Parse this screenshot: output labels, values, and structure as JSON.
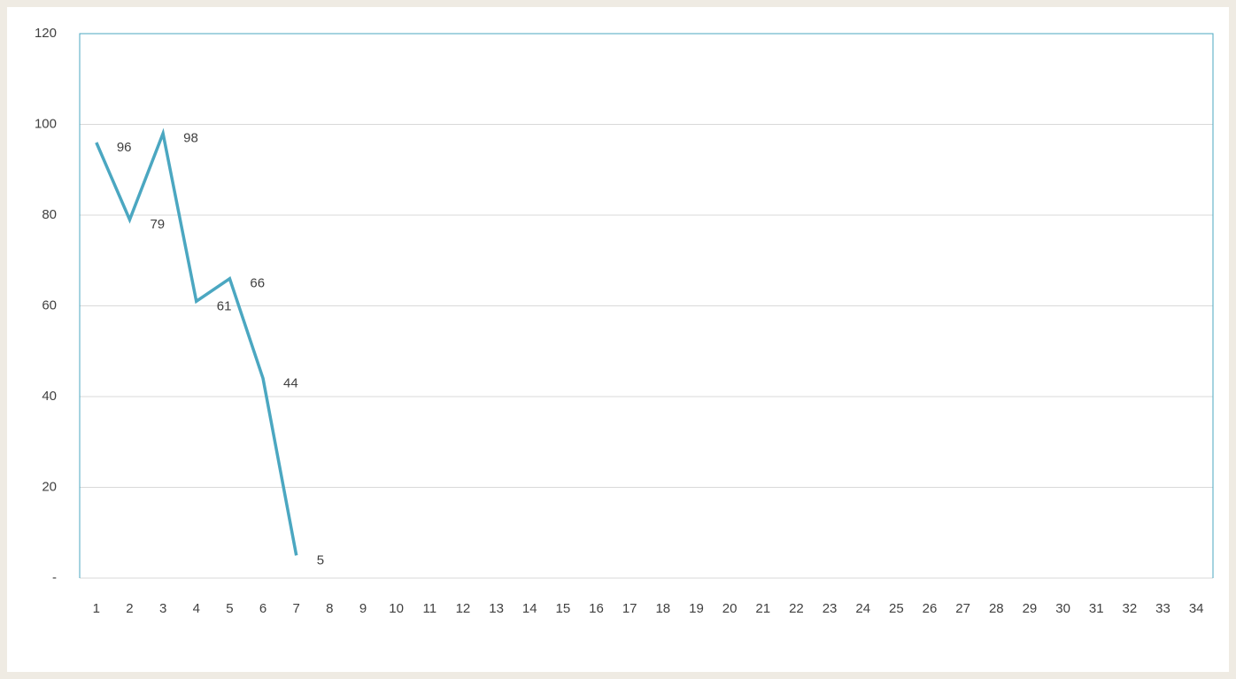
{
  "chart_data": {
    "type": "line",
    "categories": [
      "1",
      "2",
      "3",
      "4",
      "5",
      "6",
      "7",
      "8",
      "9",
      "10",
      "11",
      "12",
      "13",
      "14",
      "15",
      "16",
      "17",
      "18",
      "19",
      "20",
      "21",
      "22",
      "23",
      "24",
      "25",
      "26",
      "27",
      "28",
      "29",
      "30",
      "31",
      "32",
      "33",
      "34"
    ],
    "series": [
      {
        "color": "#4ba7c1",
        "values": [
          96,
          79,
          98,
          61,
          66,
          44,
          5,
          null,
          null,
          null,
          null,
          null,
          null,
          null,
          null,
          null,
          null,
          null,
          null,
          null,
          null,
          null,
          null,
          null,
          null,
          null,
          null,
          null,
          null,
          null,
          null,
          null,
          null,
          null
        ]
      }
    ],
    "ylim": [
      0,
      120
    ],
    "yticks": [
      {
        "value": 0,
        "label": "-"
      },
      20,
      40,
      60,
      80,
      100,
      120
    ],
    "grid": true
  }
}
